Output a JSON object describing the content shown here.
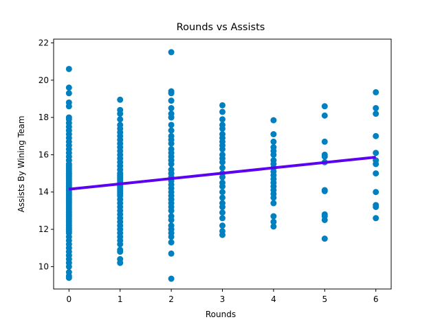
{
  "chart_data": {
    "type": "scatter",
    "title": "Rounds vs Assists",
    "xlabel": "Rounds",
    "ylabel": "Assists By Wining Team",
    "xlim": [
      -0.3,
      6.3
    ],
    "ylim": [
      8.8,
      22.2
    ],
    "xticks": [
      0,
      1,
      2,
      3,
      4,
      5,
      6
    ],
    "yticks": [
      10,
      12,
      14,
      16,
      18,
      20,
      22
    ],
    "grid": false,
    "marker_color": "#0080c0",
    "line_color": "#5b00f0",
    "regression_line": {
      "x": [
        0,
        6
      ],
      "y": [
        14.15,
        15.87
      ]
    },
    "points": [
      {
        "x": 0,
        "y": [
          20.6,
          19.6,
          19.3,
          18.8,
          18.6,
          18.0,
          17.9,
          17.7,
          17.5,
          17.3,
          17.1,
          16.9,
          16.7,
          16.5,
          16.3,
          16.1,
          15.9,
          15.7,
          15.5,
          15.4,
          15.3,
          15.2,
          15.1,
          15.0,
          14.9,
          14.8,
          14.7,
          14.6,
          14.5,
          14.4,
          14.3,
          14.2,
          14.1,
          14.0,
          13.9,
          13.8,
          13.7,
          13.6,
          13.5,
          13.4,
          13.3,
          13.2,
          13.1,
          13.0,
          12.9,
          12.8,
          12.7,
          12.6,
          12.5,
          12.4,
          12.3,
          12.2,
          12.1,
          12.0,
          11.9,
          11.8,
          11.6,
          11.4,
          11.2,
          11.0,
          10.8,
          10.6,
          10.4,
          10.2,
          10.0,
          9.7,
          9.5,
          9.4
        ]
      },
      {
        "x": 1,
        "y": [
          18.95,
          18.4,
          18.2,
          17.9,
          17.6,
          17.4,
          17.2,
          17.0,
          16.8,
          16.6,
          16.4,
          16.2,
          16.0,
          15.8,
          15.6,
          15.4,
          15.2,
          15.0,
          14.9,
          14.8,
          14.7,
          14.6,
          14.5,
          14.4,
          14.3,
          14.2,
          14.1,
          14.0,
          13.9,
          13.8,
          13.6,
          13.4,
          13.2,
          13.0,
          12.8,
          12.6,
          12.4,
          12.2,
          12.0,
          11.8,
          11.6,
          11.4,
          11.2,
          10.9,
          10.8,
          10.4,
          10.2
        ]
      },
      {
        "x": 2,
        "y": [
          21.5,
          19.4,
          19.3,
          18.9,
          18.5,
          18.2,
          18.0,
          17.6,
          17.3,
          17.0,
          16.8,
          16.6,
          16.3,
          16.1,
          15.9,
          15.7,
          15.5,
          15.2,
          15.0,
          14.8,
          14.6,
          14.4,
          14.2,
          14.0,
          13.8,
          13.6,
          13.4,
          13.2,
          13.0,
          12.7,
          12.5,
          12.2,
          12.0,
          11.8,
          11.6,
          11.3,
          10.7,
          9.35
        ]
      },
      {
        "x": 3,
        "y": [
          18.65,
          18.3,
          17.9,
          17.6,
          17.4,
          17.1,
          16.9,
          16.7,
          16.5,
          16.3,
          16.0,
          15.8,
          15.6,
          15.3,
          15.0,
          14.8,
          14.5,
          14.3,
          14.0,
          13.7,
          13.4,
          13.2,
          12.9,
          12.6,
          12.2,
          11.9,
          11.7
        ]
      },
      {
        "x": 4,
        "y": [
          17.85,
          17.1,
          16.7,
          16.4,
          16.2,
          16.0,
          15.7,
          15.5,
          15.3,
          15.1,
          14.9,
          14.7,
          14.5,
          14.3,
          14.1,
          13.9,
          13.7,
          13.4,
          12.7,
          12.4,
          12.15
        ]
      },
      {
        "x": 5,
        "y": [
          18.6,
          18.1,
          16.7,
          16.0,
          15.9,
          15.6,
          14.1,
          14.05,
          12.8,
          12.7,
          12.5,
          11.5
        ]
      },
      {
        "x": 6,
        "y": [
          19.35,
          18.5,
          18.2,
          17.0,
          16.1,
          15.7,
          15.5,
          15.0,
          14.0,
          13.3,
          13.2,
          12.6
        ]
      }
    ]
  }
}
